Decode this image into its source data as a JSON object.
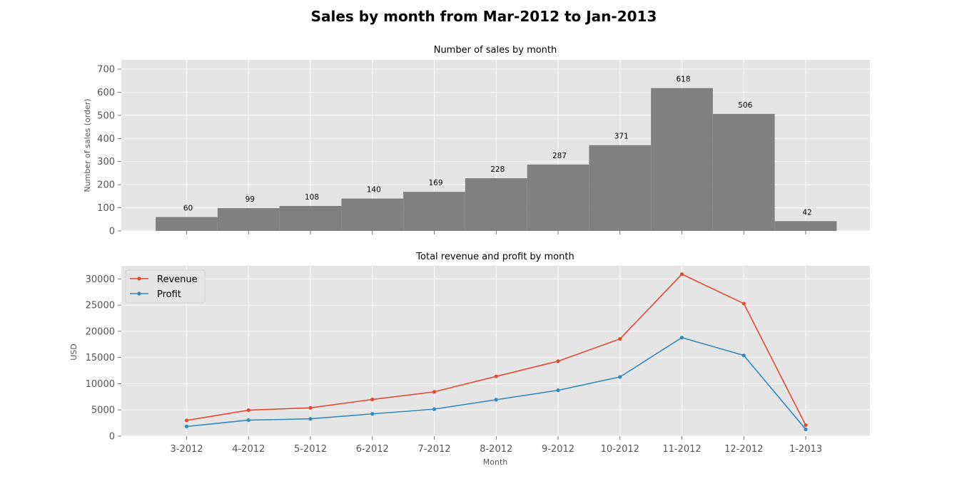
{
  "figure_title": "Sales by month from Mar-2012 to Jan-2013",
  "chart_data": [
    {
      "type": "bar",
      "title": "Number of sales by month",
      "xlabel": "",
      "ylabel": "Number of sales (order)",
      "categories": [
        "3-2012",
        "4-2012",
        "5-2012",
        "6-2012",
        "7-2012",
        "8-2012",
        "9-2012",
        "10-2012",
        "11-2012",
        "12-2012",
        "1-2013"
      ],
      "values": [
        60,
        99,
        108,
        140,
        169,
        228,
        287,
        371,
        618,
        506,
        42
      ],
      "ylim": [
        0,
        740
      ],
      "yticks": [
        0,
        100,
        200,
        300,
        400,
        500,
        600,
        700
      ],
      "bar_color": "#808080",
      "grid": true
    },
    {
      "type": "line",
      "title": "Total revenue and profit by month",
      "xlabel": "Month",
      "ylabel": "USD",
      "categories": [
        "3-2012",
        "4-2012",
        "5-2012",
        "6-2012",
        "7-2012",
        "8-2012",
        "9-2012",
        "10-2012",
        "11-2012",
        "12-2012",
        "1-2013"
      ],
      "series": [
        {
          "name": "Revenue",
          "color": "#E24A33",
          "values": [
            3000,
            4950,
            5400,
            7000,
            8450,
            11400,
            14300,
            18550,
            30900,
            25300,
            2100
          ]
        },
        {
          "name": "Profit",
          "color": "#348ABD",
          "values": [
            1850,
            3050,
            3300,
            4250,
            5150,
            6950,
            8750,
            11300,
            18800,
            15400,
            1300
          ]
        }
      ],
      "ylim": [
        0,
        32500
      ],
      "yticks": [
        0,
        5000,
        10000,
        15000,
        20000,
        25000,
        30000
      ],
      "legend": "upper-left",
      "grid": true
    }
  ]
}
